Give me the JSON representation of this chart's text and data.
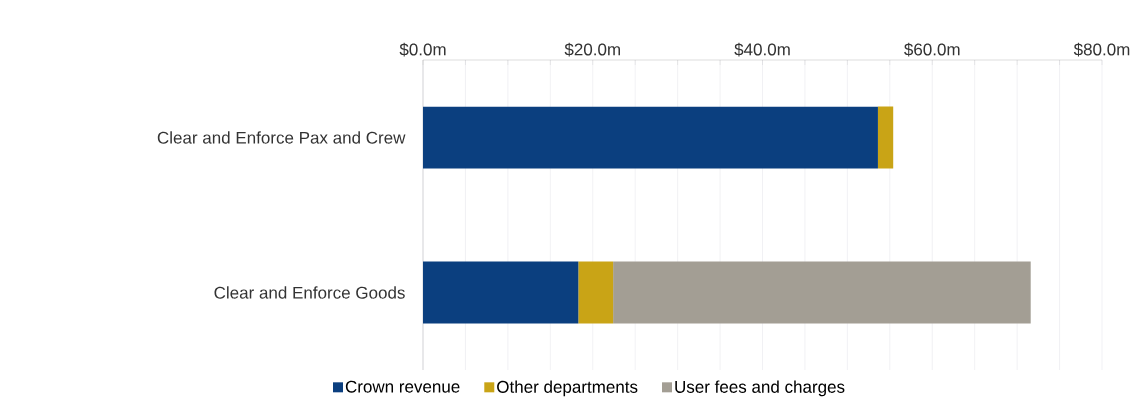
{
  "chart_data": {
    "type": "bar",
    "orientation": "horizontal",
    "stacked": true,
    "categories": [
      "Clear and Enforce Pax and Crew",
      "Clear and Enforce Goods"
    ],
    "series": [
      {
        "name": "Crown revenue",
        "color": "#0b3f7f",
        "values": [
          53.6,
          18.3
        ]
      },
      {
        "name": "Other departments",
        "color": "#c9a416",
        "values": [
          1.8,
          4.1
        ]
      },
      {
        "name": "User fees and charges",
        "color": "#a39e94",
        "values": [
          null,
          49.2
        ]
      }
    ],
    "xlim": [
      0,
      80
    ],
    "xticks": [
      {
        "value": 0,
        "label": "$0.0m"
      },
      {
        "value": 5,
        "label": null
      },
      {
        "value": 10,
        "label": null
      },
      {
        "value": 15,
        "label": null
      },
      {
        "value": 20,
        "label": "$20.0m"
      },
      {
        "value": 25,
        "label": null
      },
      {
        "value": 30,
        "label": null
      },
      {
        "value": 35,
        "label": null
      },
      {
        "value": 40,
        "label": "$40.0m"
      },
      {
        "value": 45,
        "label": null
      },
      {
        "value": 50,
        "label": null
      },
      {
        "value": 55,
        "label": null
      },
      {
        "value": 60,
        "label": "$60.0m"
      },
      {
        "value": 65,
        "label": null
      },
      {
        "value": 70,
        "label": null
      },
      {
        "value": 75,
        "label": null
      },
      {
        "value": 80,
        "label": "$80.0m"
      }
    ],
    "grid": "x",
    "legend": "bottom"
  }
}
